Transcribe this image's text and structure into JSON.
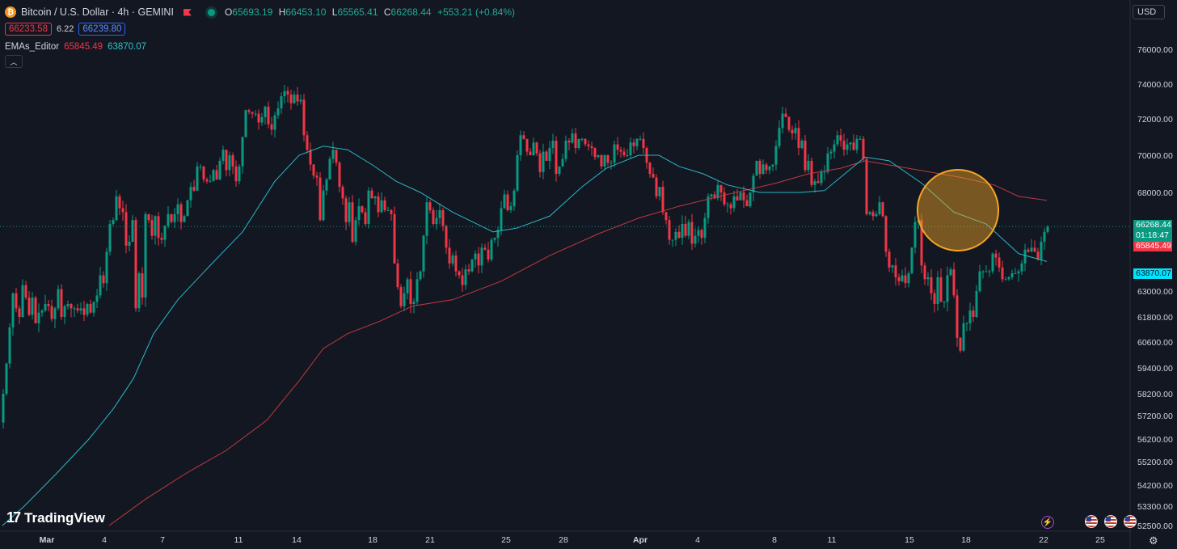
{
  "header": {
    "symbol_icon": "bitcoin-icon",
    "title": "Bitcoin / U.S. Dollar · 4h · GEMINI",
    "ohlc": [
      {
        "k": "O",
        "v": "65693.19"
      },
      {
        "k": "H",
        "v": "66453.10"
      },
      {
        "k": "L",
        "v": "65565.41"
      },
      {
        "k": "C",
        "v": "66268.44"
      },
      {
        "k": "",
        "v": "+553.21 (+0.84%)"
      }
    ],
    "sell_price": "66233.58",
    "spread": "6.22",
    "buy_price": "66239.80",
    "indicator_name": "EMAs_Editor",
    "indicator_val_1": "65845.49",
    "indicator_val_2": "63870.07",
    "currency": "USD"
  },
  "tags": {
    "last_price": "66268.44",
    "countdown": "01:18:47",
    "ema_red": "65845.49",
    "ema_teal": "63870.07"
  },
  "branding": "TradingView",
  "chart_data": {
    "type": "candlestick",
    "timeframe": "4h",
    "y_ticks": [
      "76000.00",
      "74000.00",
      "72000.00",
      "70000.00",
      "68000.00",
      "63000.00",
      "61800.00",
      "60600.00",
      "59400.00",
      "58200.00",
      "57200.00",
      "56200.00",
      "55200.00",
      "54200.00",
      "53300.00",
      "52500.00"
    ],
    "x_ticks": [
      "Mar",
      "4",
      "7",
      "11",
      "14",
      "18",
      "21",
      "25",
      "28",
      "Apr",
      "4",
      "8",
      "11",
      "15",
      "18",
      "22",
      "25"
    ],
    "close_path": [
      [
        0,
        56900
      ],
      [
        4,
        58200
      ],
      [
        8,
        59600
      ],
      [
        12,
        61300
      ],
      [
        16,
        62900
      ],
      [
        20,
        62200
      ],
      [
        24,
        61800
      ],
      [
        28,
        63300
      ],
      [
        32,
        62700
      ],
      [
        36,
        61900
      ],
      [
        40,
        62700
      ],
      [
        44,
        61500
      ],
      [
        48,
        62000
      ],
      [
        52,
        62100
      ],
      [
        56,
        62400
      ],
      [
        60,
        62300
      ],
      [
        64,
        61700
      ],
      [
        68,
        62200
      ],
      [
        72,
        63100
      ],
      [
        76,
        61800
      ],
      [
        80,
        62300
      ],
      [
        84,
        62400
      ],
      [
        88,
        62200
      ],
      [
        92,
        62200
      ],
      [
        96,
        62100
      ],
      [
        100,
        62200
      ],
      [
        104,
        61900
      ],
      [
        108,
        62400
      ],
      [
        112,
        62000
      ],
      [
        116,
        62500
      ],
      [
        120,
        62800
      ],
      [
        124,
        63800
      ],
      [
        128,
        63400
      ],
      [
        132,
        65000
      ],
      [
        136,
        66400
      ],
      [
        140,
        66600
      ],
      [
        144,
        67800
      ],
      [
        148,
        67200
      ],
      [
        152,
        67000
      ],
      [
        156,
        65300
      ],
      [
        160,
        65500
      ],
      [
        164,
        66600
      ],
      [
        168,
        62200
      ],
      [
        172,
        63900
      ],
      [
        176,
        62700
      ],
      [
        180,
        66900
      ],
      [
        184,
        66600
      ],
      [
        188,
        65800
      ],
      [
        192,
        66800
      ],
      [
        196,
        65700
      ],
      [
        200,
        65600
      ],
      [
        204,
        66300
      ],
      [
        208,
        66900
      ],
      [
        212,
        66500
      ],
      [
        216,
        66900
      ],
      [
        220,
        67400
      ],
      [
        224,
        66500
      ],
      [
        228,
        66800
      ],
      [
        232,
        67600
      ],
      [
        236,
        68300
      ],
      [
        240,
        68100
      ],
      [
        244,
        69400
      ],
      [
        248,
        69400
      ],
      [
        252,
        68700
      ],
      [
        256,
        68600
      ],
      [
        260,
        68600
      ],
      [
        264,
        69200
      ],
      [
        268,
        68700
      ],
      [
        272,
        69700
      ],
      [
        276,
        70300
      ],
      [
        280,
        69200
      ],
      [
        284,
        70000
      ],
      [
        288,
        69400
      ],
      [
        292,
        68600
      ],
      [
        296,
        69400
      ],
      [
        300,
        71000
      ],
      [
        304,
        72500
      ],
      [
        308,
        72400
      ],
      [
        312,
        72300
      ],
      [
        316,
        72300
      ],
      [
        320,
        71800
      ],
      [
        324,
        72100
      ],
      [
        328,
        72700
      ],
      [
        332,
        71700
      ],
      [
        336,
        71400
      ],
      [
        340,
        72200
      ],
      [
        344,
        72600
      ],
      [
        348,
        73300
      ],
      [
        352,
        73600
      ],
      [
        356,
        73400
      ],
      [
        360,
        72900
      ],
      [
        364,
        73400
      ],
      [
        368,
        73000
      ],
      [
        372,
        73100
      ],
      [
        376,
        71100
      ],
      [
        380,
        70300
      ],
      [
        384,
        69500
      ],
      [
        388,
        68900
      ],
      [
        392,
        68800
      ],
      [
        396,
        66600
      ],
      [
        400,
        68100
      ],
      [
        404,
        68700
      ],
      [
        408,
        69800
      ],
      [
        412,
        70300
      ],
      [
        416,
        69600
      ],
      [
        420,
        68300
      ],
      [
        424,
        67700
      ],
      [
        428,
        66500
      ],
      [
        432,
        67500
      ],
      [
        436,
        65500
      ],
      [
        440,
        66600
      ],
      [
        444,
        67300
      ],
      [
        448,
        67000
      ],
      [
        452,
        66400
      ],
      [
        456,
        68100
      ],
      [
        460,
        67700
      ],
      [
        464,
        67800
      ],
      [
        468,
        67000
      ],
      [
        472,
        67600
      ],
      [
        476,
        67100
      ],
      [
        480,
        67100
      ],
      [
        484,
        66900
      ],
      [
        488,
        64400
      ],
      [
        492,
        63200
      ],
      [
        496,
        62300
      ],
      [
        500,
        62900
      ],
      [
        504,
        63600
      ],
      [
        508,
        62400
      ],
      [
        512,
        62500
      ],
      [
        516,
        63600
      ],
      [
        520,
        64000
      ],
      [
        524,
        65800
      ],
      [
        528,
        67500
      ],
      [
        532,
        67100
      ],
      [
        536,
        66400
      ],
      [
        540,
        66700
      ],
      [
        544,
        67100
      ],
      [
        548,
        66300
      ],
      [
        552,
        65200
      ],
      [
        556,
        64400
      ],
      [
        560,
        64800
      ],
      [
        564,
        64000
      ],
      [
        568,
        63800
      ],
      [
        572,
        63300
      ],
      [
        576,
        64100
      ],
      [
        580,
        64000
      ],
      [
        584,
        64600
      ],
      [
        588,
        64900
      ],
      [
        592,
        64300
      ],
      [
        596,
        65200
      ],
      [
        600,
        65100
      ],
      [
        604,
        64600
      ],
      [
        608,
        65600
      ],
      [
        612,
        65700
      ],
      [
        616,
        66100
      ],
      [
        620,
        67200
      ],
      [
        624,
        67900
      ],
      [
        628,
        67100
      ],
      [
        632,
        67300
      ],
      [
        636,
        68100
      ],
      [
        640,
        70000
      ],
      [
        644,
        71100
      ],
      [
        648,
        70900
      ],
      [
        652,
        70200
      ],
      [
        656,
        70000
      ],
      [
        660,
        70700
      ],
      [
        664,
        70100
      ],
      [
        668,
        69100
      ],
      [
        672,
        70200
      ],
      [
        676,
        69700
      ],
      [
        680,
        70400
      ],
      [
        684,
        70800
      ],
      [
        688,
        69000
      ],
      [
        692,
        69400
      ],
      [
        696,
        69800
      ],
      [
        700,
        70800
      ],
      [
        704,
        70700
      ],
      [
        708,
        71200
      ],
      [
        712,
        70400
      ],
      [
        716,
        70900
      ],
      [
        720,
        70900
      ],
      [
        724,
        70600
      ],
      [
        728,
        70500
      ],
      [
        732,
        70400
      ],
      [
        736,
        69900
      ],
      [
        740,
        70000
      ],
      [
        744,
        69400
      ],
      [
        748,
        70000
      ],
      [
        752,
        69600
      ],
      [
        756,
        69600
      ],
      [
        760,
        70600
      ],
      [
        764,
        70300
      ],
      [
        768,
        70200
      ],
      [
        772,
        70000
      ],
      [
        776,
        70000
      ],
      [
        780,
        70700
      ],
      [
        784,
        70500
      ],
      [
        788,
        70900
      ],
      [
        792,
        70900
      ],
      [
        796,
        70400
      ],
      [
        800,
        69600
      ],
      [
        804,
        69000
      ],
      [
        808,
        68800
      ],
      [
        812,
        67800
      ],
      [
        816,
        68300
      ],
      [
        820,
        67000
      ],
      [
        824,
        66600
      ],
      [
        828,
        65600
      ],
      [
        832,
        65600
      ],
      [
        836,
        66000
      ],
      [
        840,
        65700
      ],
      [
        844,
        66400
      ],
      [
        848,
        65800
      ],
      [
        852,
        66500
      ],
      [
        856,
        65400
      ],
      [
        860,
        65800
      ],
      [
        864,
        66100
      ],
      [
        868,
        65700
      ],
      [
        872,
        66700
      ],
      [
        876,
        67800
      ],
      [
        880,
        67900
      ],
      [
        884,
        67700
      ],
      [
        888,
        68400
      ],
      [
        892,
        68000
      ],
      [
        896,
        67400
      ],
      [
        900,
        67400
      ],
      [
        904,
        67200
      ],
      [
        908,
        67800
      ],
      [
        912,
        67600
      ],
      [
        916,
        68000
      ],
      [
        920,
        67600
      ],
      [
        924,
        67300
      ],
      [
        928,
        68000
      ],
      [
        932,
        68900
      ],
      [
        936,
        69700
      ],
      [
        940,
        69000
      ],
      [
        944,
        69500
      ],
      [
        948,
        69200
      ],
      [
        952,
        69400
      ],
      [
        956,
        69500
      ],
      [
        960,
        70500
      ],
      [
        964,
        71500
      ],
      [
        968,
        72300
      ],
      [
        972,
        72100
      ],
      [
        976,
        71400
      ],
      [
        980,
        71200
      ],
      [
        984,
        71500
      ],
      [
        988,
        70400
      ],
      [
        992,
        70800
      ],
      [
        996,
        69200
      ],
      [
        1000,
        69700
      ],
      [
        1004,
        68400
      ],
      [
        1008,
        68600
      ],
      [
        1012,
        68500
      ],
      [
        1016,
        69100
      ],
      [
        1020,
        69100
      ],
      [
        1024,
        70100
      ],
      [
        1028,
        70200
      ],
      [
        1032,
        70600
      ],
      [
        1036,
        71100
      ],
      [
        1040,
        70800
      ],
      [
        1044,
        70300
      ],
      [
        1048,
        70600
      ],
      [
        1052,
        70700
      ],
      [
        1056,
        70300
      ],
      [
        1060,
        70900
      ],
      [
        1064,
        70900
      ],
      [
        1068,
        69800
      ],
      [
        1072,
        66900
      ],
      [
        1076,
        67000
      ],
      [
        1080,
        66800
      ],
      [
        1084,
        66900
      ],
      [
        1088,
        67500
      ],
      [
        1092,
        66800
      ],
      [
        1096,
        65000
      ],
      [
        1100,
        64200
      ],
      [
        1104,
        64300
      ],
      [
        1108,
        63700
      ],
      [
        1112,
        63500
      ],
      [
        1116,
        63800
      ],
      [
        1120,
        63400
      ],
      [
        1124,
        63900
      ],
      [
        1128,
        65200
      ],
      [
        1132,
        66500
      ],
      [
        1136,
        66600
      ],
      [
        1140,
        64300
      ],
      [
        1144,
        63600
      ],
      [
        1148,
        63700
      ],
      [
        1152,
        62900
      ],
      [
        1156,
        62400
      ],
      [
        1160,
        63700
      ],
      [
        1164,
        62500
      ],
      [
        1168,
        62500
      ],
      [
        1172,
        63800
      ],
      [
        1176,
        64100
      ],
      [
        1180,
        62800
      ],
      [
        1184,
        60800
      ],
      [
        1188,
        60200
      ],
      [
        1192,
        61500
      ],
      [
        1196,
        61500
      ],
      [
        1200,
        62100
      ],
      [
        1204,
        61800
      ],
      [
        1208,
        63000
      ],
      [
        1212,
        64000
      ],
      [
        1216,
        64000
      ],
      [
        1220,
        64000
      ],
      [
        1224,
        64000
      ],
      [
        1228,
        64900
      ],
      [
        1232,
        64700
      ],
      [
        1236,
        64200
      ],
      [
        1240,
        63600
      ],
      [
        1244,
        63600
      ],
      [
        1248,
        63700
      ],
      [
        1252,
        63900
      ],
      [
        1256,
        63900
      ],
      [
        1260,
        64000
      ],
      [
        1264,
        64400
      ],
      [
        1268,
        65100
      ],
      [
        1272,
        65000
      ],
      [
        1276,
        65200
      ],
      [
        1280,
        65000
      ],
      [
        1284,
        64600
      ],
      [
        1288,
        65500
      ],
      [
        1292,
        66000
      ],
      [
        1296,
        66268
      ]
    ],
    "ema_fast_path": [
      [
        3,
        52500
      ],
      [
        30,
        53300
      ],
      [
        70,
        54700
      ],
      [
        110,
        56200
      ],
      [
        140,
        57500
      ],
      [
        165,
        58900
      ],
      [
        190,
        61000
      ],
      [
        220,
        62600
      ],
      [
        260,
        64300
      ],
      [
        300,
        66000
      ],
      [
        340,
        68600
      ],
      [
        370,
        70000
      ],
      [
        400,
        70500
      ],
      [
        430,
        70300
      ],
      [
        460,
        69500
      ],
      [
        490,
        68600
      ],
      [
        520,
        68000
      ],
      [
        560,
        67000
      ],
      [
        590,
        66400
      ],
      [
        610,
        66000
      ],
      [
        640,
        66200
      ],
      [
        680,
        66800
      ],
      [
        720,
        68300
      ],
      [
        750,
        69300
      ],
      [
        790,
        70000
      ],
      [
        815,
        70000
      ],
      [
        840,
        69400
      ],
      [
        870,
        69000
      ],
      [
        900,
        68400
      ],
      [
        940,
        68000
      ],
      [
        990,
        68000
      ],
      [
        1020,
        68100
      ],
      [
        1045,
        69000
      ],
      [
        1070,
        69900
      ],
      [
        1100,
        69700
      ],
      [
        1140,
        68500
      ],
      [
        1180,
        67000
      ],
      [
        1220,
        66400
      ],
      [
        1260,
        64900
      ],
      [
        1295,
        64500
      ]
    ],
    "ema_slow_path": [
      [
        135,
        52500
      ],
      [
        180,
        53600
      ],
      [
        230,
        54700
      ],
      [
        280,
        55700
      ],
      [
        330,
        57000
      ],
      [
        370,
        58800
      ],
      [
        400,
        60300
      ],
      [
        430,
        61000
      ],
      [
        470,
        61600
      ],
      [
        510,
        62300
      ],
      [
        560,
        62600
      ],
      [
        620,
        63500
      ],
      [
        680,
        64800
      ],
      [
        740,
        65900
      ],
      [
        790,
        66700
      ],
      [
        840,
        67300
      ],
      [
        900,
        67900
      ],
      [
        960,
        68500
      ],
      [
        1000,
        69000
      ],
      [
        1040,
        69300
      ],
      [
        1070,
        69700
      ],
      [
        1110,
        69400
      ],
      [
        1150,
        69100
      ],
      [
        1190,
        68800
      ],
      [
        1230,
        68400
      ],
      [
        1260,
        67800
      ],
      [
        1295,
        67600
      ]
    ],
    "annotation": {
      "type": "circle",
      "color": "#f5a623",
      "x": 1185,
      "y": 67100
    }
  }
}
